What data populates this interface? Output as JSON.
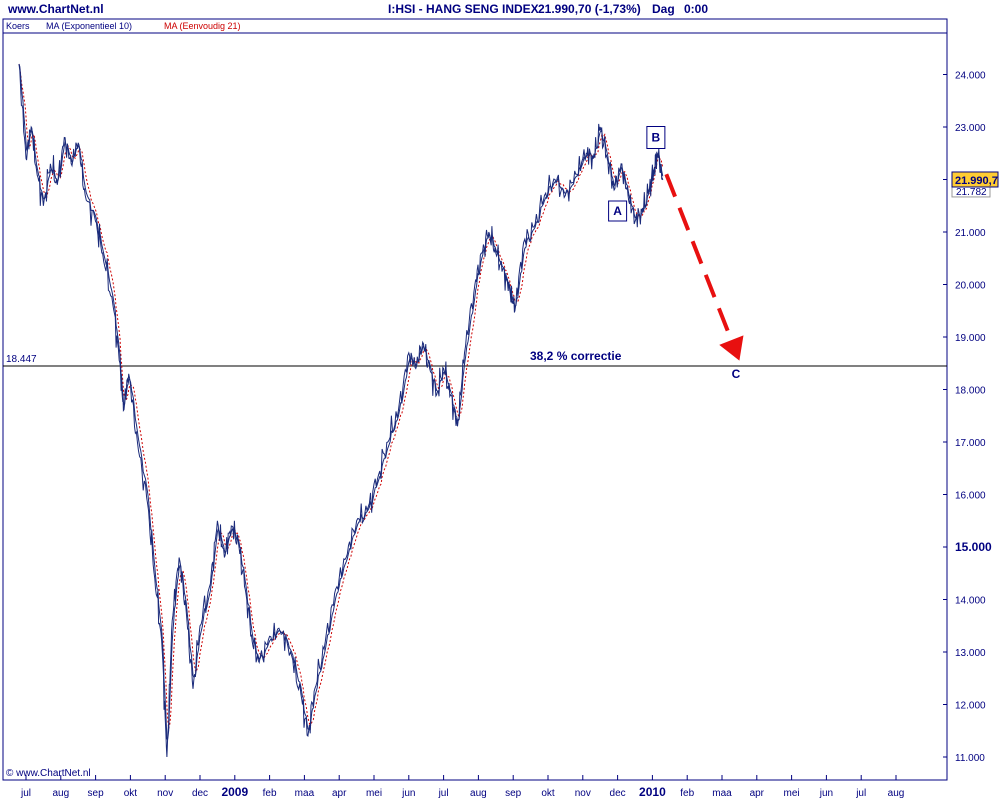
{
  "header": {
    "site": "www.ChartNet.nl",
    "instrument": "I:HSI - HANG SENG INDEX",
    "quote": "21.990,70 (-1,73%)",
    "timeframe": "Dag",
    "time": "0:00"
  },
  "legend": [
    {
      "label": "Koers",
      "color": "#000080"
    },
    {
      "label": "MA (Exponentieel 10)",
      "color": "#000080"
    },
    {
      "label": "MA (Eenvoudig 21)",
      "color": "#cc0000"
    }
  ],
  "copyright": "© www.ChartNet.nl",
  "colors": {
    "frame": "#000080",
    "price": "#1a2a7a",
    "ema": "#1a2a7a",
    "sma": "#cc0000",
    "arrow": "#e81010",
    "price_tag": "#ffcc33"
  },
  "chart_data": {
    "type": "line",
    "title": "I:HSI - HANG SENG INDEX",
    "ylim": [
      10600,
      25000
    ],
    "y_ticks": [
      {
        "value": 11000,
        "label": "11.000",
        "major": false
      },
      {
        "value": 12000,
        "label": "12.000",
        "major": false
      },
      {
        "value": 13000,
        "label": "13.000",
        "major": false
      },
      {
        "value": 14000,
        "label": "14.000",
        "major": false
      },
      {
        "value": 15000,
        "label": "15.000",
        "major": true
      },
      {
        "value": 16000,
        "label": "16.000",
        "major": false
      },
      {
        "value": 17000,
        "label": "17.000",
        "major": false
      },
      {
        "value": 18000,
        "label": "18.000",
        "major": false
      },
      {
        "value": 19000,
        "label": "19.000",
        "major": false
      },
      {
        "value": 20000,
        "label": "20.000",
        "major": false
      },
      {
        "value": 21000,
        "label": "21.000",
        "major": false
      },
      {
        "value": 22000,
        "label": "22.000",
        "major": false
      },
      {
        "value": 23000,
        "label": "23.000",
        "major": false
      },
      {
        "value": 24000,
        "label": "24.000",
        "major": false
      }
    ],
    "x_ticks": [
      {
        "value": 0,
        "label": "jul",
        "major": false
      },
      {
        "value": 1,
        "label": "aug",
        "major": false
      },
      {
        "value": 2,
        "label": "sep",
        "major": false
      },
      {
        "value": 3,
        "label": "okt",
        "major": false
      },
      {
        "value": 4,
        "label": "nov",
        "major": false
      },
      {
        "value": 5,
        "label": "dec",
        "major": false
      },
      {
        "value": 6,
        "label": "2009",
        "major": true
      },
      {
        "value": 7,
        "label": "feb",
        "major": false
      },
      {
        "value": 8,
        "label": "maa",
        "major": false
      },
      {
        "value": 9,
        "label": "apr",
        "major": false
      },
      {
        "value": 10,
        "label": "mei",
        "major": false
      },
      {
        "value": 11,
        "label": "jun",
        "major": false
      },
      {
        "value": 12,
        "label": "jul",
        "major": false
      },
      {
        "value": 13,
        "label": "aug",
        "major": false
      },
      {
        "value": 14,
        "label": "sep",
        "major": false
      },
      {
        "value": 15,
        "label": "okt",
        "major": false
      },
      {
        "value": 16,
        "label": "nov",
        "major": false
      },
      {
        "value": 17,
        "label": "dec",
        "major": false
      },
      {
        "value": 18,
        "label": "2010",
        "major": true
      },
      {
        "value": 19,
        "label": "feb",
        "major": false
      },
      {
        "value": 20,
        "label": "maa",
        "major": false
      },
      {
        "value": 21,
        "label": "apr",
        "major": false
      },
      {
        "value": 22,
        "label": "mei",
        "major": false
      },
      {
        "value": 23,
        "label": "jun",
        "major": false
      },
      {
        "value": 24,
        "label": "jul",
        "major": false
      },
      {
        "value": 25,
        "label": "aug",
        "major": false
      }
    ],
    "price_keypoints": [
      [
        -0.2,
        24200
      ],
      [
        0,
        22400
      ],
      [
        0.15,
        23000
      ],
      [
        0.3,
        22200
      ],
      [
        0.5,
        21500
      ],
      [
        0.7,
        22300
      ],
      [
        0.9,
        21900
      ],
      [
        1.1,
        22800
      ],
      [
        1.3,
        22300
      ],
      [
        1.5,
        22700
      ],
      [
        1.7,
        21700
      ],
      [
        2.0,
        21200
      ],
      [
        2.2,
        20600
      ],
      [
        2.5,
        19600
      ],
      [
        2.7,
        18500
      ],
      [
        2.8,
        17600
      ],
      [
        2.95,
        18300
      ],
      [
        3.2,
        17000
      ],
      [
        3.5,
        15800
      ],
      [
        3.7,
        14400
      ],
      [
        3.9,
        13200
      ],
      [
        4.05,
        11000
      ],
      [
        4.2,
        13600
      ],
      [
        4.4,
        14800
      ],
      [
        4.6,
        13800
      ],
      [
        4.8,
        12300
      ],
      [
        5.0,
        13500
      ],
      [
        5.3,
        14300
      ],
      [
        5.5,
        15500
      ],
      [
        5.7,
        14800
      ],
      [
        5.9,
        15400
      ],
      [
        6.1,
        15100
      ],
      [
        6.3,
        14200
      ],
      [
        6.5,
        13200
      ],
      [
        6.7,
        12800
      ],
      [
        7.0,
        13300
      ],
      [
        7.3,
        13400
      ],
      [
        7.6,
        13000
      ],
      [
        7.9,
        12200
      ],
      [
        8.1,
        11400
      ],
      [
        8.3,
        12300
      ],
      [
        8.6,
        13200
      ],
      [
        8.9,
        14200
      ],
      [
        9.2,
        14800
      ],
      [
        9.5,
        15500
      ],
      [
        9.8,
        15700
      ],
      [
        10.1,
        16300
      ],
      [
        10.4,
        17000
      ],
      [
        10.7,
        17600
      ],
      [
        11.0,
        18700
      ],
      [
        11.2,
        18400
      ],
      [
        11.4,
        18900
      ],
      [
        11.6,
        18400
      ],
      [
        11.8,
        17900
      ],
      [
        12.0,
        18400
      ],
      [
        12.2,
        17900
      ],
      [
        12.4,
        17300
      ],
      [
        12.6,
        18700
      ],
      [
        12.9,
        20000
      ],
      [
        13.1,
        20600
      ],
      [
        13.3,
        21000
      ],
      [
        13.5,
        20600
      ],
      [
        13.7,
        20300
      ],
      [
        13.9,
        19900
      ],
      [
        14.05,
        19500
      ],
      [
        14.3,
        20800
      ],
      [
        14.6,
        21100
      ],
      [
        14.9,
        21700
      ],
      [
        15.2,
        22000
      ],
      [
        15.5,
        21700
      ],
      [
        15.8,
        22100
      ],
      [
        16.1,
        22500
      ],
      [
        16.3,
        22400
      ],
      [
        16.5,
        23000
      ],
      [
        16.7,
        22400
      ],
      [
        16.9,
        21800
      ],
      [
        17.1,
        22300
      ],
      [
        17.3,
        21700
      ],
      [
        17.5,
        21200
      ],
      [
        17.7,
        21400
      ],
      [
        17.9,
        21800
      ],
      [
        18.05,
        22200
      ],
      [
        18.15,
        22500
      ],
      [
        18.3,
        21990
      ]
    ],
    "last_value": {
      "value": 21990.7,
      "label": "21.990,7"
    },
    "sma_last": {
      "value": 21782,
      "label": "21.782"
    },
    "horizontal_line": {
      "value": 18447,
      "label": "18.447"
    },
    "annotations": {
      "correction_text": "38,2 % correctie",
      "wave_a": {
        "label": "A",
        "x": 17.0,
        "y": 21400
      },
      "wave_b": {
        "label": "B",
        "x": 18.1,
        "y": 22800
      },
      "wave_c": {
        "label": "C",
        "x": 20.4,
        "y": 18300
      },
      "arrow": {
        "from": [
          18.4,
          22100
        ],
        "to": [
          20.5,
          18550
        ]
      }
    }
  }
}
